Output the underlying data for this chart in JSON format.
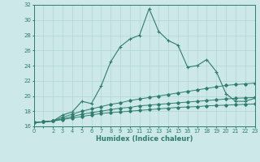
{
  "xlabel": "Humidex (Indice chaleur)",
  "x": [
    0,
    1,
    2,
    3,
    4,
    5,
    6,
    7,
    8,
    9,
    10,
    11,
    12,
    13,
    14,
    15,
    16,
    17,
    18,
    19,
    20,
    21,
    22,
    23
  ],
  "line1": [
    16.5,
    16.6,
    16.7,
    17.5,
    17.9,
    19.3,
    19.0,
    21.3,
    24.5,
    26.5,
    27.5,
    28.0,
    31.5,
    28.5,
    27.3,
    26.7,
    23.8,
    24.0,
    24.8,
    23.2,
    20.3,
    19.3,
    19.3,
    19.7
  ],
  "line2": [
    16.5,
    16.6,
    16.7,
    17.2,
    17.6,
    18.0,
    18.3,
    18.6,
    18.9,
    19.1,
    19.4,
    19.6,
    19.8,
    20.0,
    20.2,
    20.4,
    20.6,
    20.8,
    21.0,
    21.2,
    21.4,
    21.5,
    21.6,
    21.7
  ],
  "line3": [
    16.5,
    16.6,
    16.7,
    17.0,
    17.3,
    17.6,
    17.8,
    18.0,
    18.2,
    18.4,
    18.5,
    18.7,
    18.8,
    18.9,
    19.0,
    19.1,
    19.2,
    19.3,
    19.4,
    19.5,
    19.6,
    19.7,
    19.75,
    19.8
  ],
  "line4": [
    16.5,
    16.6,
    16.7,
    16.9,
    17.1,
    17.3,
    17.5,
    17.7,
    17.8,
    17.9,
    18.0,
    18.1,
    18.2,
    18.3,
    18.4,
    18.5,
    18.55,
    18.6,
    18.7,
    18.75,
    18.8,
    18.85,
    18.9,
    18.95
  ],
  "line_color": "#2e7d6d",
  "bg_color": "#cce8e8",
  "grid_color": "#b0d4d4",
  "ylim": [
    16,
    32
  ],
  "xlim": [
    0,
    23
  ],
  "yticks": [
    16,
    18,
    20,
    22,
    24,
    26,
    28,
    30,
    32
  ],
  "xtick_labels": [
    "0",
    "",
    "2",
    "3",
    "4",
    "5",
    "6",
    "7",
    "8",
    "9",
    "10",
    "11",
    "12",
    "13",
    "14",
    "15",
    "16",
    "17",
    "18",
    "19",
    "20",
    "21",
    "22",
    "23"
  ]
}
